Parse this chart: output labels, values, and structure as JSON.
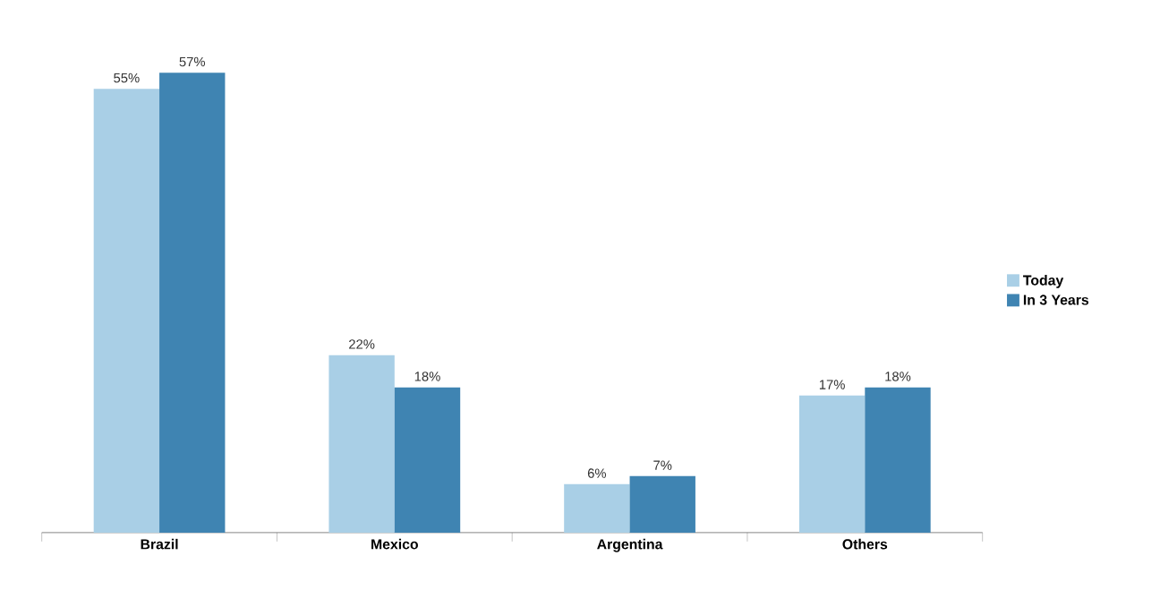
{
  "chart_data": {
    "type": "bar",
    "categories": [
      "Brazil",
      "Mexico",
      "Argentina",
      "Others"
    ],
    "series": [
      {
        "name": "Today",
        "color": "#a9cfe6",
        "values": [
          55,
          22,
          6,
          17
        ],
        "value_labels": [
          "55%",
          "22%",
          "6%",
          "17%"
        ]
      },
      {
        "name": "In 3 Years",
        "color": "#3f84b2",
        "values": [
          57,
          18,
          7,
          18
        ],
        "value_labels": [
          "57%",
          "18%",
          "7%",
          "18%"
        ]
      }
    ],
    "legend": "right"
  }
}
